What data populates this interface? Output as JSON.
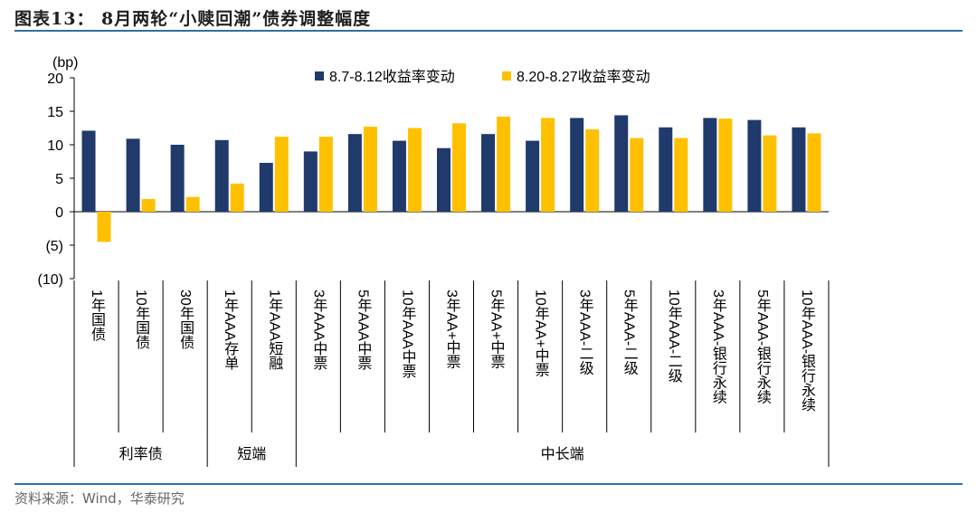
{
  "figure": {
    "title": "图表13：  8月两轮“小赎回潮”债券调整幅度",
    "source": "资料来源：Wind，华泰研究"
  },
  "colors": {
    "series1": "#1f3a6b",
    "series2": "#ffc000",
    "rule": "#2f6fa7"
  },
  "chart_data": {
    "type": "bar",
    "title": "",
    "ylabel": "(bp)",
    "xlabel": "",
    "ylim": [
      -10,
      20
    ],
    "yticks": [
      20,
      15,
      10,
      5,
      0,
      -5,
      -10
    ],
    "ytick_labels": [
      "20",
      "15",
      "10",
      "5",
      "0",
      "(5)",
      "(10)"
    ],
    "legend_position": "top-center",
    "grid": false,
    "categories": [
      "1年国债",
      "10年国债",
      "30年国债",
      "1年AAA存单",
      "1年AAA短融",
      "3年AAA中票",
      "5年AAA中票",
      "10年AAA中票",
      "3年AA+中票",
      "5年AA+中票",
      "10年AA+中票",
      "3年AAA-二级",
      "5年AAA-二级",
      "10年AAA-二级",
      "3年AAA-银行永续",
      "5年AAA-银行永续",
      "10年AAA-银行永续"
    ],
    "groups": [
      {
        "label": "利率债",
        "categories": [
          "1年国债",
          "10年国债",
          "30年国债"
        ]
      },
      {
        "label": "短端",
        "categories": [
          "1年AAA存单",
          "1年AAA短融"
        ]
      },
      {
        "label": "中长端",
        "categories": [
          "3年AAA中票",
          "5年AAA中票",
          "10年AAA中票",
          "3年AA+中票",
          "5年AA+中票",
          "10年AA+中票",
          "3年AAA-二级",
          "5年AAA-二级",
          "10年AAA-二级",
          "3年AAA-银行永续",
          "5年AAA-银行永续",
          "10年AAA-银行永续"
        ]
      }
    ],
    "series": [
      {
        "name": "8.7-8.12收益率变动",
        "values": [
          12.1,
          10.9,
          10.0,
          10.7,
          7.3,
          9.0,
          11.6,
          10.6,
          9.5,
          11.6,
          10.6,
          14.0,
          14.4,
          12.6,
          14.0,
          13.7,
          12.6
        ]
      },
      {
        "name": "8.20-8.27收益率变动",
        "values": [
          -4.5,
          1.9,
          2.2,
          4.2,
          11.2,
          11.2,
          12.7,
          12.5,
          13.2,
          14.2,
          14.0,
          12.3,
          11.0,
          11.0,
          13.9,
          11.4,
          11.7
        ]
      }
    ]
  }
}
